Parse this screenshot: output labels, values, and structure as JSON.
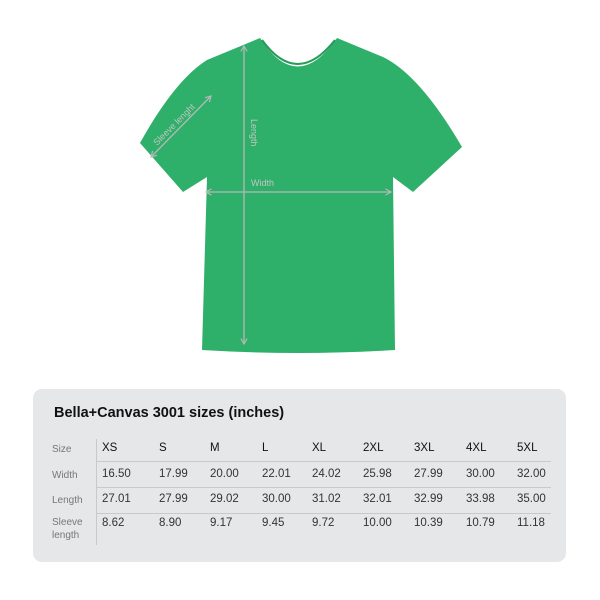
{
  "colors": {
    "shirt": "#2fb06a",
    "arrows": "#b7b7b7",
    "panel": "#e6e7e8"
  },
  "diagram": {
    "sleeve_label": "Sleeve lenght",
    "length_label": "Length",
    "width_label": "Width"
  },
  "table": {
    "title": "Bella+Canvas 3001 sizes (inches)",
    "rows": [
      {
        "label": "Size",
        "values": [
          "XS",
          "S",
          "M",
          "L",
          "XL",
          "2XL",
          "3XL",
          "4XL",
          "5XL"
        ]
      },
      {
        "label": "Width",
        "values": [
          "16.50",
          "17.99",
          "20.00",
          "22.01",
          "24.02",
          "25.98",
          "27.99",
          "30.00",
          "32.00"
        ]
      },
      {
        "label": "Length",
        "values": [
          "27.01",
          "27.99",
          "29.02",
          "30.00",
          "31.02",
          "32.01",
          "32.99",
          "33.98",
          "35.00"
        ]
      },
      {
        "label": "Sleeve length",
        "values": [
          "8.62",
          "8.90",
          "9.17",
          "9.45",
          "9.72",
          "10.00",
          "10.39",
          "10.79",
          "11.18"
        ]
      }
    ]
  }
}
